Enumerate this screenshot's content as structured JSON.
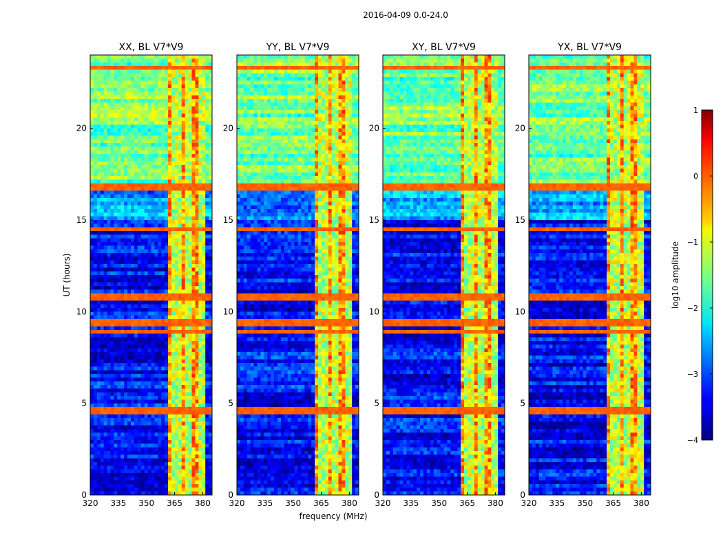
{
  "figure": {
    "suptitle": "2016-04-09 0.0-24.0"
  },
  "chart_data": {
    "type": "heatmap",
    "title": "2016-04-09 0.0-24.0",
    "xlabel": "frequency (MHz)",
    "ylabel": "UT (hours)",
    "xlim": [
      320,
      385
    ],
    "ylim": [
      0,
      24
    ],
    "x_ticks": [
      320,
      335,
      350,
      365,
      380
    ],
    "y_ticks": [
      0,
      5,
      10,
      15,
      20
    ],
    "panels": [
      {
        "title": "XX, BL V7*V9",
        "pol": "XX"
      },
      {
        "title": "YY, BL V7*V9",
        "pol": "YY"
      },
      {
        "title": "XY, BL V7*V9",
        "pol": "XY"
      },
      {
        "title": "YX, BL V7*V9",
        "pol": "YX"
      }
    ],
    "rfi_bands_mhz": [
      [
        361,
        381
      ]
    ],
    "rfi_times_hours": [
      [
        16.6,
        16.9
      ],
      [
        10.7,
        11.0
      ],
      [
        9.3,
        9.5
      ],
      [
        8.9,
        9.0
      ],
      [
        14.5,
        14.6
      ],
      [
        4.5,
        4.7
      ],
      [
        23.2,
        23.4
      ]
    ],
    "colorbar": {
      "label": "log10 amplitude",
      "vmin": -4,
      "vmax": 1,
      "ticks": [
        1,
        0,
        -1,
        -2,
        -3,
        -4
      ],
      "tick_labels": [
        "1",
        "0",
        "−1",
        "−2",
        "−3",
        "−4"
      ],
      "colormap": "jet"
    }
  }
}
